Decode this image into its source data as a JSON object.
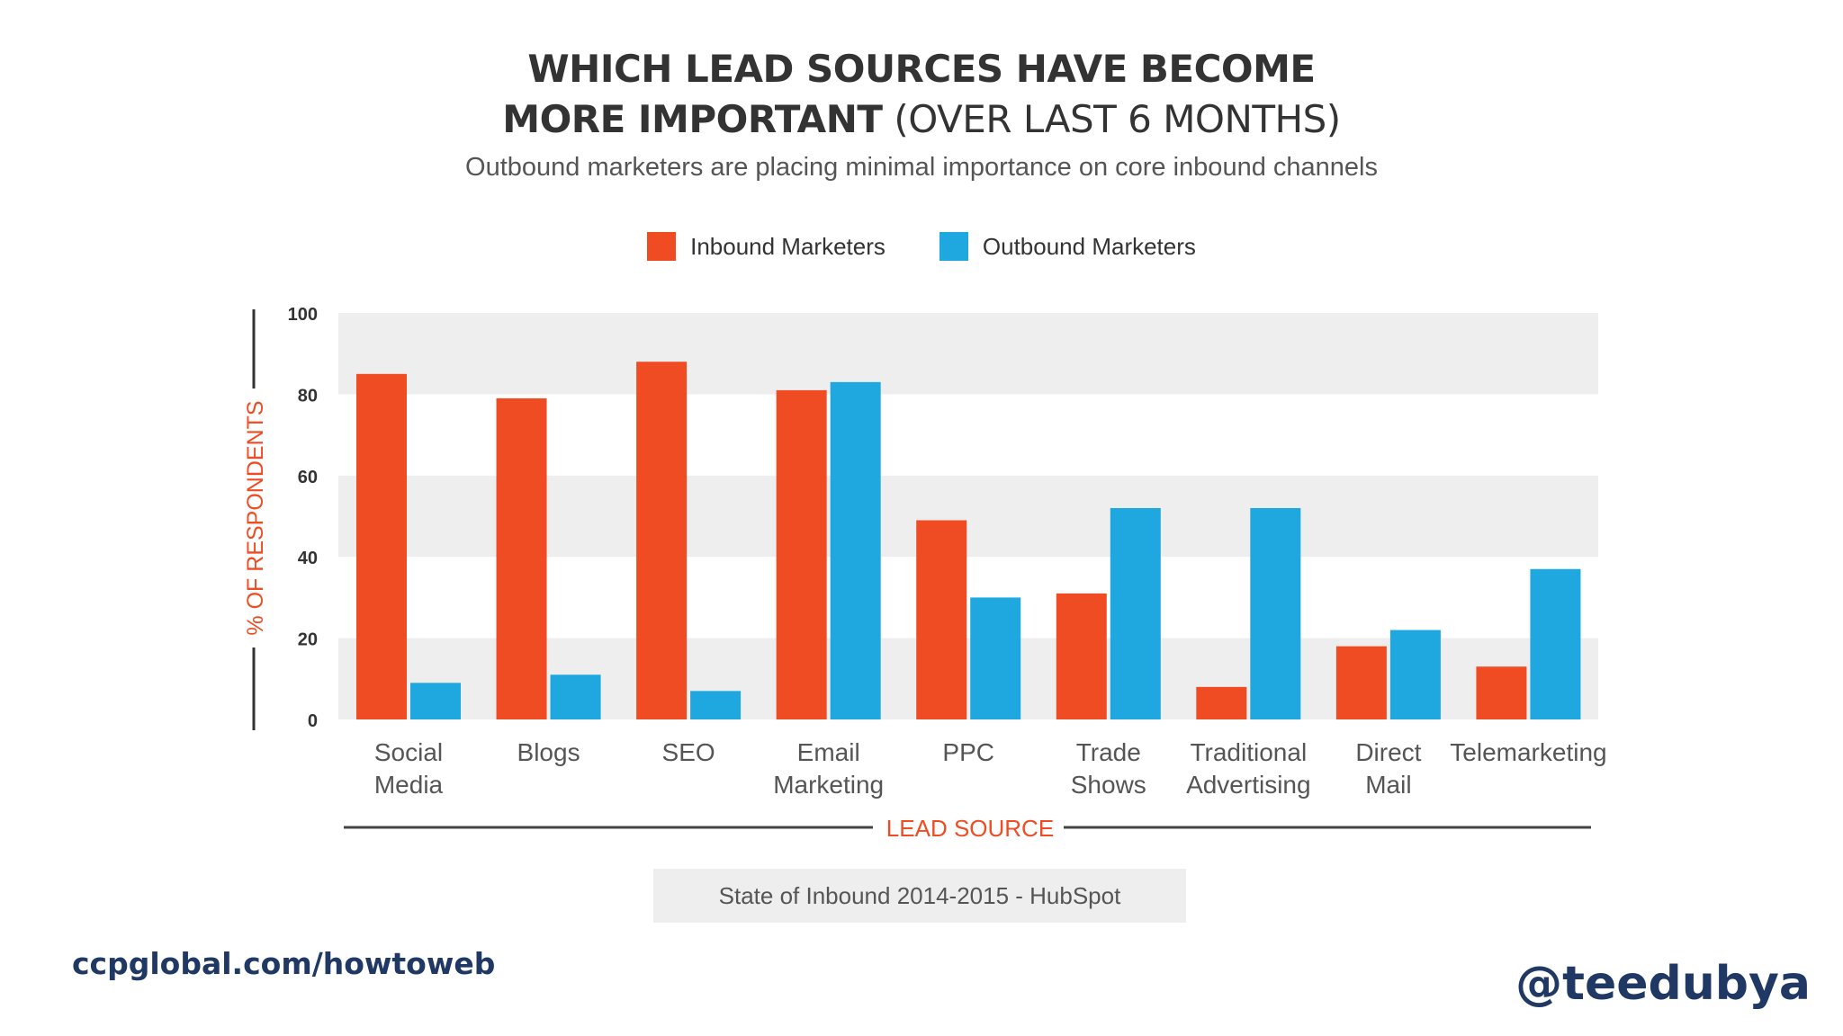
{
  "header": {
    "title_line1": "WHICH LEAD SOURCES HAVE BECOME",
    "title_line2_bold": "MORE IMPORTANT",
    "title_line2_light": " (OVER LAST 6 MONTHS)",
    "subtitle": "Outbound marketers are placing minimal importance on core inbound channels"
  },
  "colors": {
    "inbound": "#ef4c23",
    "outbound": "#1fa7e0",
    "band": "#eeeeee",
    "axis_title": "#ef4c23"
  },
  "chart_data": {
    "type": "bar",
    "title": "WHICH LEAD SOURCES HAVE BECOME MORE IMPORTANT (OVER LAST 6 MONTHS)",
    "xlabel": "LEAD SOURCE",
    "ylabel": "% OF RESPONDENTS",
    "ylim": [
      0,
      100
    ],
    "yticks": [
      0,
      20,
      40,
      60,
      80,
      100
    ],
    "legend_position": "top-center",
    "categories": [
      [
        "Social",
        "Media"
      ],
      [
        "Blogs"
      ],
      [
        "SEO"
      ],
      [
        "Email",
        "Marketing"
      ],
      [
        "PPC"
      ],
      [
        "Trade",
        "Shows"
      ],
      [
        "Traditional",
        "Advertising"
      ],
      [
        "Direct",
        "Mail"
      ],
      [
        "Telemarketing"
      ]
    ],
    "series": [
      {
        "name": "Inbound Marketers",
        "values": [
          85,
          79,
          88,
          81,
          49,
          31,
          8,
          18,
          13
        ]
      },
      {
        "name": "Outbound Marketers",
        "values": [
          9,
          11,
          7,
          83,
          30,
          52,
          52,
          22,
          37
        ]
      }
    ]
  },
  "source": "State of Inbound 2014-2015 - HubSpot",
  "footer": {
    "url": "ccpglobal.com/howtoweb",
    "handle": "@teedubya"
  }
}
